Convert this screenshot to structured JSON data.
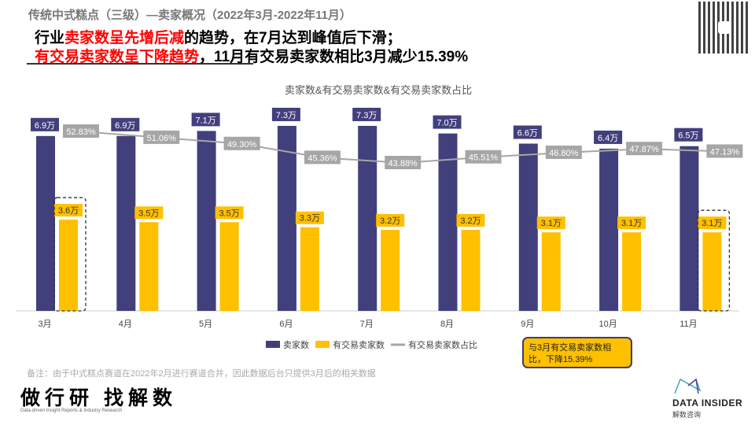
{
  "header": {
    "supertitle": "传统中式糕点（三级）—卖家概况（2022年3月-2022年11月）",
    "line1": [
      "行业",
      "卖家数呈先增后减",
      "的趋势，在7月达到峰值后下滑；"
    ],
    "line2": [
      "有交易卖家数呈下降趋势",
      "，11月有交易卖家数相比3月减少15.39%"
    ]
  },
  "chart_data": {
    "type": "bar",
    "title": "卖家数&有交易卖家数&有交易卖家数占比",
    "categories": [
      "3月",
      "4月",
      "5月",
      "6月",
      "7月",
      "8月",
      "9月",
      "10月",
      "11月"
    ],
    "series": [
      {
        "name": "卖家数",
        "type": "bar",
        "color": "#423f7d",
        "values": [
          6.9,
          6.9,
          7.1,
          7.3,
          7.3,
          7.0,
          6.6,
          6.4,
          6.5
        ],
        "labels": [
          "6.9万",
          "6.9万",
          "7.1万",
          "7.3万",
          "7.3万",
          "7.0万",
          "6.6万",
          "6.4万",
          "6.5万"
        ]
      },
      {
        "name": "有交易卖家数",
        "type": "bar",
        "color": "#ffc000",
        "values": [
          3.6,
          3.5,
          3.5,
          3.3,
          3.2,
          3.2,
          3.1,
          3.1,
          3.1
        ],
        "labels": [
          "3.6万",
          "3.5万",
          "3.5万",
          "3.3万",
          "3.2万",
          "3.2万",
          "3.1万",
          "3.1万",
          "3.1万"
        ]
      },
      {
        "name": "有交易卖家数占比",
        "type": "line",
        "color": "#a6a6a6",
        "values": [
          52.83,
          51.06,
          49.3,
          45.36,
          43.88,
          45.51,
          46.8,
          47.87,
          47.13
        ],
        "labels": [
          "52.83%",
          "51.06%",
          "49.30%",
          "45.36%",
          "43.88%",
          "45.51%",
          "46.80%",
          "47.87%",
          "47.13%"
        ]
      }
    ],
    "legend_position": "bottom",
    "highlighted_categories": [
      "3月",
      "11月"
    ]
  },
  "callout": "与3月有交易卖家数相比，下降15.39%",
  "note": "备注：由于中式糕点赛道在2022年2月进行赛道合并，因此数据后台只提供3月后的相关数据",
  "brand_left": {
    "name": "做行研 找解数",
    "tagline": "Data-driven Insight Reports & Industry Research"
  },
  "brand_right": {
    "name": "DATA INSIDER",
    "sub": "解数咨询"
  }
}
